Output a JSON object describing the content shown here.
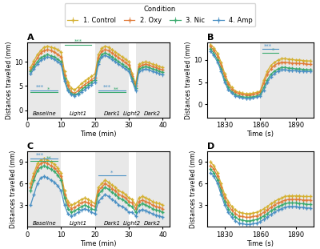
{
  "chart_data": [
    {
      "type": "line",
      "title": "A",
      "x_label": "Time (min)",
      "y_label": "Distances travelled (mm)",
      "xlim": [
        0,
        42
      ],
      "ylim": [
        -1.5,
        14.0
      ],
      "xticks": [
        0,
        10,
        20,
        30,
        40
      ],
      "yticks": [
        0,
        5,
        10
      ],
      "shaded": {
        "color": "#e8e8e8",
        "ranges": [
          [
            0,
            10
          ],
          [
            20,
            30
          ],
          [
            32,
            42
          ]
        ]
      },
      "zone_labels": [
        {
          "text": "Baseline",
          "x": 5
        },
        {
          "text": "Light1",
          "x": 15
        },
        {
          "text": "Dark1",
          "x": 25
        },
        {
          "text": "Light2",
          "x": 31
        },
        {
          "text": "Dark2",
          "x": 37
        }
      ],
      "annotations": [
        {
          "text": "***",
          "x": [
            1,
            9
          ],
          "y": 4.1,
          "color": "#4a90c4"
        },
        {
          "text": "*",
          "x": [
            1,
            9
          ],
          "y": 3.67,
          "color": "#3aaa6e"
        },
        {
          "text": "***",
          "x": [
            11,
            19
          ],
          "y": 13.55,
          "color": "#3aaa6e"
        },
        {
          "text": "***",
          "x": [
            21,
            29
          ],
          "y": 4.1,
          "color": "#4a90c4"
        },
        {
          "text": "**",
          "x": [
            21,
            29
          ],
          "y": 3.67,
          "color": "#3aaa6e"
        }
      ],
      "x": [
        1,
        2,
        3,
        4,
        5,
        6,
        7,
        8,
        9,
        10,
        11,
        12,
        13,
        14,
        15,
        16,
        17,
        18,
        19,
        20,
        21,
        22,
        23,
        24,
        25,
        26,
        27,
        28,
        29,
        30,
        31,
        32,
        33,
        34,
        35,
        36,
        37,
        38,
        39,
        40
      ],
      "series": [
        {
          "name": "1. Control",
          "color": "#d4b030",
          "marker": "plus",
          "yerr": 0.35,
          "values": [
            8.8,
            10.2,
            11.5,
            12.3,
            13.0,
            13.2,
            13.0,
            12.8,
            12.5,
            12.0,
            8.0,
            5.8,
            4.5,
            4.2,
            4.8,
            5.5,
            6.0,
            6.5,
            7.0,
            7.5,
            11.5,
            12.8,
            13.2,
            13.0,
            12.5,
            12.0,
            11.5,
            11.0,
            10.5,
            10.0,
            7.5,
            5.5,
            9.5,
            9.8,
            10.0,
            9.8,
            9.5,
            9.3,
            9.0,
            8.8
          ]
        },
        {
          "name": "2. Oxy",
          "color": "#e07b39",
          "marker": "plus",
          "yerr": 0.35,
          "values": [
            8.3,
            9.5,
            10.8,
            11.8,
            12.3,
            12.5,
            12.3,
            12.0,
            11.5,
            11.0,
            7.2,
            5.0,
            3.8,
            3.5,
            4.0,
            4.8,
            5.3,
            5.8,
            6.3,
            6.8,
            10.8,
            12.2,
            12.5,
            12.3,
            11.8,
            11.3,
            10.8,
            10.3,
            9.8,
            9.3,
            7.0,
            5.0,
            9.0,
            9.3,
            9.5,
            9.3,
            9.0,
            8.8,
            8.5,
            8.3
          ]
        },
        {
          "name": "3. Nic",
          "color": "#3aaa6e",
          "marker": "plus",
          "yerr": 0.35,
          "values": [
            8.0,
            9.0,
            10.0,
            10.8,
            11.2,
            11.5,
            11.2,
            11.0,
            10.5,
            10.0,
            6.5,
            4.2,
            3.5,
            3.2,
            3.5,
            4.2,
            4.8,
            5.3,
            5.8,
            6.3,
            10.0,
            11.5,
            11.8,
            11.5,
            11.0,
            10.5,
            10.0,
            9.5,
            9.0,
            8.5,
            6.5,
            4.5,
            8.5,
            8.8,
            9.0,
            8.8,
            8.5,
            8.3,
            8.0,
            7.8
          ]
        },
        {
          "name": "4. Amp",
          "color": "#4a90c4",
          "marker": "plus",
          "yerr": 0.35,
          "values": [
            7.5,
            8.5,
            9.5,
            10.3,
            10.7,
            11.0,
            10.8,
            10.5,
            10.0,
            9.5,
            6.0,
            4.0,
            3.2,
            3.0,
            3.3,
            3.8,
            4.3,
            4.8,
            5.3,
            5.8,
            9.5,
            11.0,
            11.3,
            11.0,
            10.5,
            10.0,
            9.5,
            9.0,
            8.5,
            8.0,
            6.0,
            4.0,
            8.0,
            8.3,
            8.5,
            8.3,
            8.0,
            7.8,
            7.5,
            7.3
          ]
        }
      ]
    },
    {
      "type": "line",
      "title": "B",
      "x_label": "Time (s)",
      "y_label": "Distances travelled (mm)",
      "xlim": [
        1815,
        1905
      ],
      "ylim": [
        -3.0,
        14.0
      ],
      "xticks": [
        1830,
        1860,
        1890
      ],
      "yticks": [
        0,
        5,
        10
      ],
      "shaded": {
        "color": "#e8e8e8",
        "ranges": [
          [
            1860,
            1905
          ]
        ]
      },
      "legend": "upper center",
      "legend_title": "Condition",
      "annotations": [
        {
          "text": "***",
          "x": [
            1862,
            1875
          ],
          "y": 12.5,
          "color": "#4a90c4"
        },
        {
          "text": "*",
          "x": [
            1862,
            1875
          ],
          "y": 11.6,
          "color": "#3aaa6e"
        }
      ],
      "x": [
        1818,
        1821,
        1824,
        1827,
        1830,
        1833,
        1836,
        1839,
        1842,
        1845,
        1848,
        1851,
        1854,
        1857,
        1860,
        1863,
        1866,
        1869,
        1872,
        1875,
        1878,
        1881,
        1884,
        1887,
        1890,
        1893,
        1896,
        1899,
        1902
      ],
      "series": [
        {
          "name": "1. Control",
          "color": "#d4b030",
          "marker": "plus",
          "yerr": 0.35,
          "values": [
            13.5,
            12.8,
            11.5,
            9.5,
            7.0,
            5.0,
            3.8,
            3.0,
            2.7,
            2.5,
            2.4,
            2.4,
            2.5,
            2.7,
            3.0,
            5.5,
            7.5,
            8.8,
            9.5,
            10.0,
            10.3,
            10.3,
            10.2,
            10.1,
            10.0,
            10.0,
            9.9,
            9.8,
            9.8
          ]
        },
        {
          "name": "2. Oxy",
          "color": "#e07b39",
          "marker": "plus",
          "yerr": 0.35,
          "values": [
            13.0,
            12.2,
            10.8,
            8.8,
            6.3,
            4.5,
            3.3,
            2.7,
            2.4,
            2.2,
            2.1,
            2.1,
            2.2,
            2.4,
            2.7,
            4.8,
            6.8,
            8.0,
            8.8,
            9.3,
            9.5,
            9.5,
            9.4,
            9.3,
            9.3,
            9.2,
            9.2,
            9.1,
            9.0
          ]
        },
        {
          "name": "3. Nic",
          "color": "#3aaa6e",
          "marker": "plus",
          "yerr": 0.35,
          "values": [
            12.5,
            11.5,
            10.0,
            8.0,
            5.5,
            3.8,
            2.8,
            2.2,
            1.9,
            1.7,
            1.6,
            1.6,
            1.7,
            1.9,
            2.2,
            3.8,
            5.5,
            6.8,
            7.5,
            8.0,
            8.3,
            8.3,
            8.2,
            8.1,
            8.0,
            8.0,
            7.9,
            7.8,
            7.8
          ]
        },
        {
          "name": "4. Amp",
          "color": "#4a90c4",
          "marker": "plus",
          "yerr": 0.35,
          "values": [
            12.0,
            11.0,
            9.5,
            7.5,
            5.0,
            3.3,
            2.5,
            1.9,
            1.6,
            1.4,
            1.3,
            1.3,
            1.4,
            1.6,
            1.9,
            3.2,
            5.0,
            6.2,
            7.0,
            7.5,
            7.8,
            7.8,
            7.7,
            7.6,
            7.6,
            7.5,
            7.5,
            7.4,
            7.4
          ]
        }
      ]
    },
    {
      "type": "line",
      "title": "C",
      "x_label": "Time (min)",
      "y_label": "Distances travelled (mm)",
      "xlim": [
        0,
        42
      ],
      "ylim": [
        0.0,
        10.5
      ],
      "xticks": [
        0,
        10,
        20,
        30,
        40
      ],
      "yticks": [
        3,
        6,
        9
      ],
      "shaded": {
        "color": "#e8e8e8",
        "ranges": [
          [
            0,
            10
          ],
          [
            20,
            30
          ],
          [
            32,
            42
          ]
        ]
      },
      "zone_labels": [
        {
          "text": "Baseline",
          "x": 5
        },
        {
          "text": "Light1",
          "x": 15
        },
        {
          "text": "Dark1",
          "x": 25
        },
        {
          "text": "Light2",
          "x": 31
        },
        {
          "text": "Dark2",
          "x": 37
        }
      ],
      "annotations": [
        {
          "text": "***",
          "x": [
            1,
            9
          ],
          "y": 9.55,
          "color": "#4a90c4"
        },
        {
          "text": "**",
          "x": [
            1,
            9
          ],
          "y": 9.15,
          "color": "#3aaa6e"
        },
        {
          "text": "*",
          "x": [
            21,
            29
          ],
          "y": 7.1,
          "color": "#4a90c4"
        }
      ],
      "x": [
        1,
        2,
        3,
        4,
        5,
        6,
        7,
        8,
        9,
        10,
        11,
        12,
        13,
        14,
        15,
        16,
        17,
        18,
        19,
        20,
        21,
        22,
        23,
        24,
        25,
        26,
        27,
        28,
        29,
        30,
        31,
        32,
        33,
        34,
        35,
        36,
        37,
        38,
        39,
        40
      ],
      "series": [
        {
          "name": "1. Control",
          "color": "#d4b030",
          "marker": "plus",
          "yerr": 0.25,
          "values": [
            6.0,
            7.5,
            8.8,
            9.3,
            9.5,
            9.3,
            9.0,
            8.7,
            8.2,
            7.5,
            5.0,
            3.5,
            3.0,
            3.2,
            3.5,
            3.8,
            4.0,
            3.8,
            3.5,
            3.2,
            5.5,
            6.0,
            6.5,
            6.2,
            5.8,
            5.5,
            5.0,
            4.8,
            4.5,
            4.0,
            3.8,
            3.0,
            4.0,
            4.2,
            4.0,
            3.8,
            3.5,
            3.3,
            3.2,
            3.0
          ]
        },
        {
          "name": "2. Oxy",
          "color": "#e07b39",
          "marker": "plus",
          "yerr": 0.25,
          "values": [
            5.5,
            7.0,
            8.3,
            8.8,
            9.0,
            8.8,
            8.5,
            8.2,
            7.7,
            7.0,
            4.5,
            3.0,
            2.5,
            2.7,
            3.0,
            3.3,
            3.5,
            3.3,
            3.0,
            2.8,
            5.0,
            5.5,
            6.0,
            5.7,
            5.3,
            5.0,
            4.5,
            4.3,
            4.0,
            3.5,
            3.3,
            2.5,
            3.5,
            3.7,
            3.5,
            3.3,
            3.0,
            2.8,
            2.7,
            2.5
          ]
        },
        {
          "name": "3. Nic",
          "color": "#3aaa6e",
          "marker": "plus",
          "yerr": 0.25,
          "values": [
            5.0,
            6.5,
            7.8,
            8.3,
            8.5,
            8.3,
            8.0,
            7.7,
            7.2,
            6.5,
            4.0,
            2.5,
            2.0,
            2.2,
            2.5,
            2.8,
            3.0,
            2.8,
            2.5,
            2.3,
            4.5,
            5.0,
            5.5,
            5.2,
            4.8,
            4.5,
            4.0,
            3.8,
            3.5,
            3.0,
            2.8,
            2.0,
            3.0,
            3.2,
            3.0,
            2.8,
            2.5,
            2.3,
            2.2,
            2.0
          ]
        },
        {
          "name": "4. Amp",
          "color": "#4a90c4",
          "marker": "plus",
          "yerr": 0.25,
          "values": [
            3.0,
            4.5,
            6.0,
            6.8,
            7.0,
            6.8,
            6.5,
            6.2,
            5.7,
            5.0,
            3.0,
            1.8,
            1.5,
            1.7,
            2.0,
            2.3,
            2.5,
            2.3,
            2.0,
            1.8,
            3.5,
            4.0,
            4.5,
            4.2,
            3.8,
            3.5,
            3.0,
            2.8,
            2.5,
            2.0,
            2.0,
            1.5,
            2.2,
            2.4,
            2.2,
            2.0,
            1.8,
            1.6,
            1.5,
            1.3
          ]
        }
      ]
    },
    {
      "type": "line",
      "title": "D",
      "x_label": "Time (s)",
      "y_label": "Distances travelled (mm)",
      "xlim": [
        1815,
        1905
      ],
      "ylim": [
        0.0,
        10.5
      ],
      "xticks": [
        1830,
        1860,
        1890
      ],
      "yticks": [
        3,
        6,
        9
      ],
      "shaded": {
        "color": "#e8e8e8",
        "ranges": [
          [
            1860,
            1905
          ]
        ]
      },
      "x": [
        1818,
        1821,
        1824,
        1827,
        1830,
        1833,
        1836,
        1839,
        1842,
        1845,
        1848,
        1851,
        1854,
        1857,
        1860,
        1863,
        1866,
        1869,
        1872,
        1875,
        1878,
        1881,
        1884,
        1887,
        1890,
        1893,
        1896,
        1899,
        1902
      ],
      "series": [
        {
          "name": "1. Control",
          "color": "#d4b030",
          "marker": "plus",
          "yerr": 0.25,
          "values": [
            9.0,
            8.5,
            7.5,
            6.0,
            4.5,
            3.5,
            2.8,
            2.3,
            2.0,
            1.9,
            1.8,
            1.8,
            1.9,
            2.0,
            2.2,
            2.5,
            2.8,
            3.2,
            3.5,
            3.8,
            4.0,
            4.2,
            4.3,
            4.3,
            4.3,
            4.3,
            4.2,
            4.2,
            4.2
          ]
        },
        {
          "name": "2. Oxy",
          "color": "#e07b39",
          "marker": "plus",
          "yerr": 0.25,
          "values": [
            8.5,
            8.0,
            7.0,
            5.5,
            4.0,
            3.0,
            2.3,
            1.8,
            1.5,
            1.4,
            1.3,
            1.3,
            1.4,
            1.5,
            1.7,
            2.0,
            2.3,
            2.7,
            3.0,
            3.3,
            3.5,
            3.7,
            3.8,
            3.8,
            3.8,
            3.8,
            3.7,
            3.7,
            3.7
          ]
        },
        {
          "name": "3. Nic",
          "color": "#3aaa6e",
          "marker": "plus",
          "yerr": 0.25,
          "values": [
            8.0,
            7.5,
            6.5,
            5.0,
            3.5,
            2.5,
            1.8,
            1.3,
            1.0,
            0.9,
            0.8,
            0.8,
            0.9,
            1.0,
            1.2,
            1.5,
            1.8,
            2.2,
            2.5,
            2.8,
            3.0,
            3.2,
            3.3,
            3.3,
            3.3,
            3.2,
            3.2,
            3.1,
            3.1
          ]
        },
        {
          "name": "4. Amp",
          "color": "#4a90c4",
          "marker": "plus",
          "yerr": 0.25,
          "values": [
            7.5,
            7.0,
            6.0,
            4.5,
            3.0,
            2.0,
            1.3,
            0.8,
            0.5,
            0.4,
            0.3,
            0.3,
            0.4,
            0.5,
            0.7,
            1.0,
            1.3,
            1.7,
            2.0,
            2.3,
            2.5,
            2.7,
            2.8,
            2.8,
            2.8,
            2.7,
            2.7,
            2.6,
            2.6
          ]
        }
      ]
    }
  ]
}
